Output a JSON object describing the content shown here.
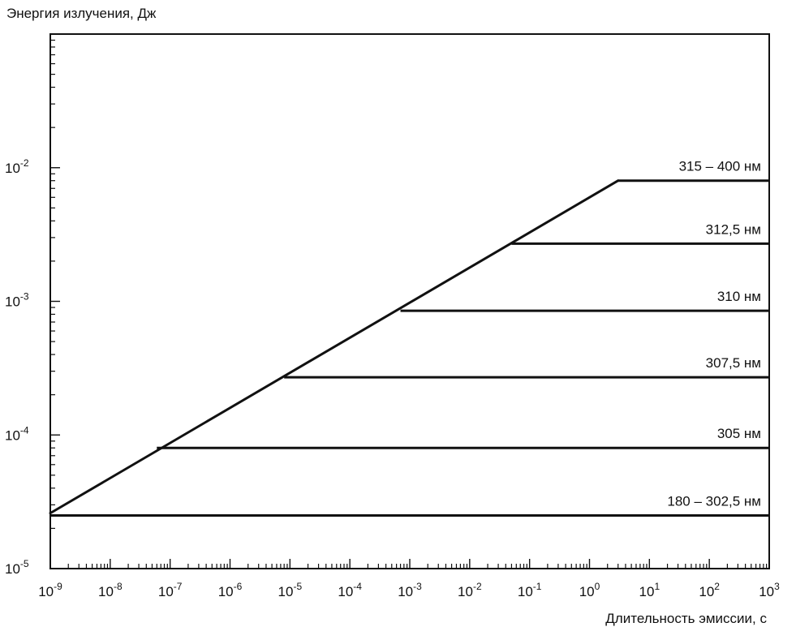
{
  "chart_data": {
    "type": "line",
    "ylabel": "Энергия излучения, Дж",
    "xlabel": "Длительность эмиссии, с",
    "xscale": "log",
    "yscale": "log",
    "xlim": [
      1e-09,
      1000
    ],
    "ylim": [
      1e-05,
      0.1
    ],
    "grid": false,
    "x_ticks": [
      {
        "value": 1e-09,
        "base": "10",
        "exp": "-9"
      },
      {
        "value": 1e-08,
        "base": "10",
        "exp": "-8"
      },
      {
        "value": 1e-07,
        "base": "10",
        "exp": "-7"
      },
      {
        "value": 1e-06,
        "base": "10",
        "exp": "-6"
      },
      {
        "value": 1e-05,
        "base": "10",
        "exp": "-5"
      },
      {
        "value": 0.0001,
        "base": "10",
        "exp": "-4"
      },
      {
        "value": 0.001,
        "base": "10",
        "exp": "-3"
      },
      {
        "value": 0.01,
        "base": "10",
        "exp": "-2"
      },
      {
        "value": 0.1,
        "base": "10",
        "exp": "-1"
      },
      {
        "value": 1,
        "base": "10",
        "exp": "0"
      },
      {
        "value": 10,
        "base": "10",
        "exp": "1"
      },
      {
        "value": 100,
        "base": "10",
        "exp": "2"
      },
      {
        "value": 1000,
        "base": "10",
        "exp": "3"
      }
    ],
    "y_ticks": [
      {
        "value": 1e-05,
        "base": "10",
        "exp": "-5"
      },
      {
        "value": 0.0001,
        "base": "10",
        "exp": "-4"
      },
      {
        "value": 0.001,
        "base": "10",
        "exp": "-3"
      },
      {
        "value": 0.01,
        "base": "10",
        "exp": "-2"
      }
    ],
    "diagonal": {
      "x": [
        1e-09,
        3
      ],
      "y": [
        2.6e-05,
        0.008
      ]
    },
    "series": [
      {
        "name": "315 – 400 нм",
        "x": [
          3,
          1000
        ],
        "y": [
          0.008,
          0.008
        ]
      },
      {
        "name": "312,5 нм",
        "x": [
          0.05,
          1000
        ],
        "y": [
          0.0027,
          0.0027
        ]
      },
      {
        "name": "310 нм",
        "x": [
          0.0007,
          1000
        ],
        "y": [
          0.00085,
          0.00085
        ]
      },
      {
        "name": "307,5 нм",
        "x": [
          8e-06,
          1000
        ],
        "y": [
          0.00027,
          0.00027
        ]
      },
      {
        "name": "305 нм",
        "x": [
          6e-08,
          1000
        ],
        "y": [
          8e-05,
          8e-05
        ]
      },
      {
        "name": "180 – 302,5 нм",
        "x": [
          1e-09,
          1000
        ],
        "y": [
          2.5e-05,
          2.5e-05
        ]
      }
    ]
  }
}
